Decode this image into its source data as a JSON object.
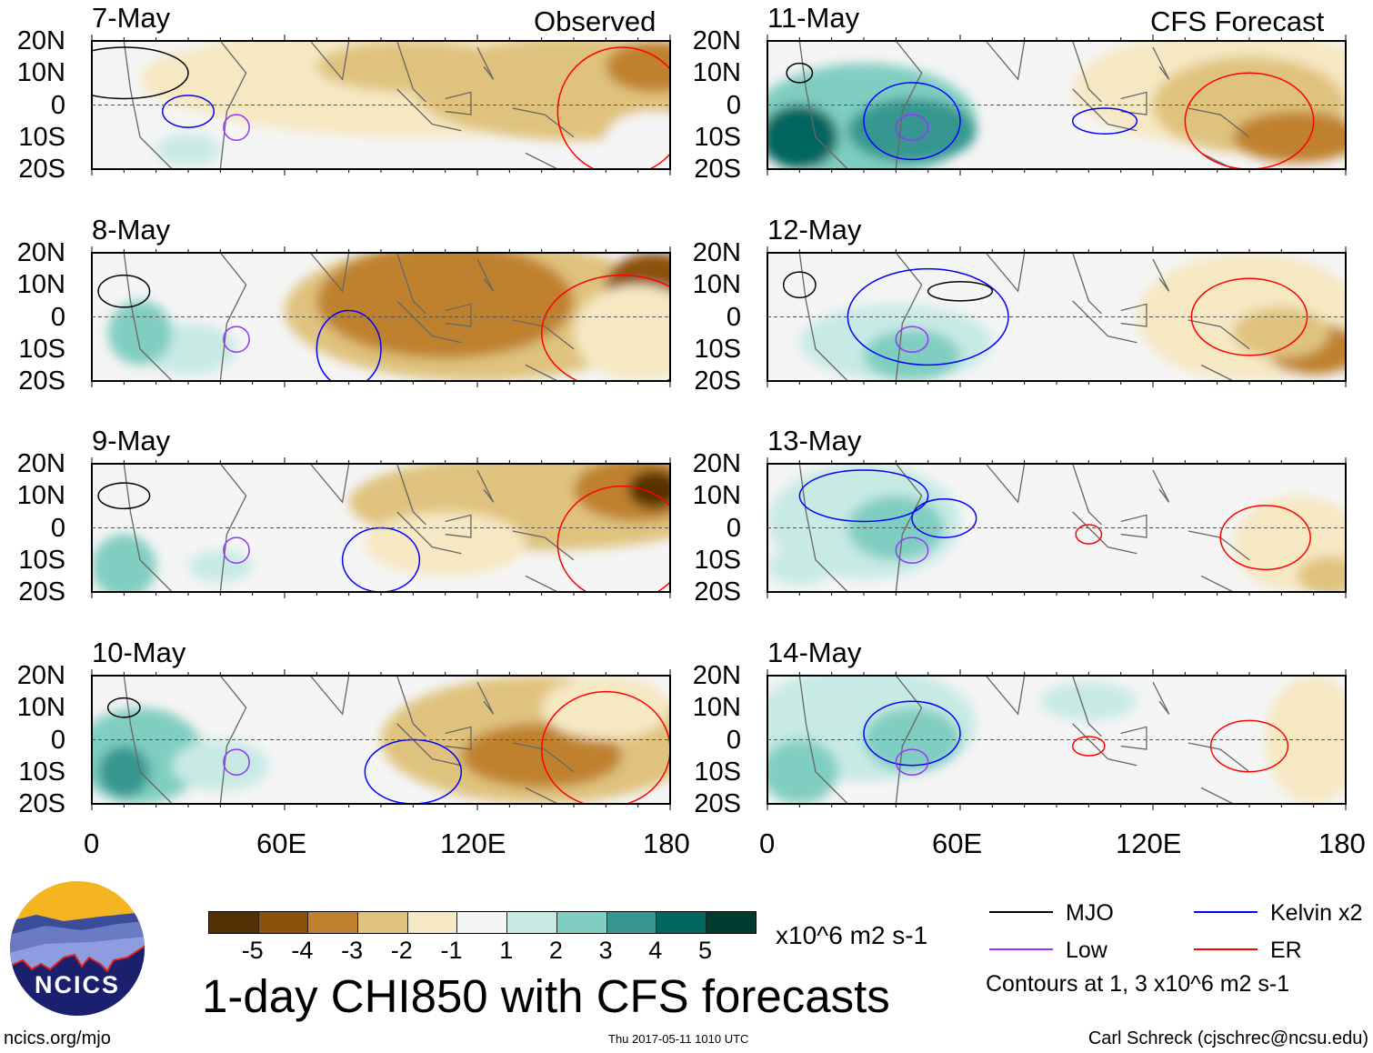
{
  "header": {
    "left_label": "Observed",
    "right_label": "CFS Forecast"
  },
  "panels": [
    {
      "date": "7-May",
      "col": 0,
      "row": 0
    },
    {
      "date": "8-May",
      "col": 0,
      "row": 1
    },
    {
      "date": "9-May",
      "col": 0,
      "row": 2
    },
    {
      "date": "10-May",
      "col": 0,
      "row": 3
    },
    {
      "date": "11-May",
      "col": 1,
      "row": 0
    },
    {
      "date": "12-May",
      "col": 1,
      "row": 1
    },
    {
      "date": "13-May",
      "col": 1,
      "row": 2
    },
    {
      "date": "14-May",
      "col": 1,
      "row": 3
    }
  ],
  "chart_data": {
    "type": "heatmap",
    "title": "1-day CHI850 with CFS forecasts",
    "units": "x10^6 m2 s-1",
    "y_ticks": [
      "20N",
      "10N",
      "0",
      "10S",
      "20S"
    ],
    "x_ticks": [
      "0",
      "60E",
      "120E",
      "180"
    ],
    "xlim": [
      0,
      180
    ],
    "ylim": [
      -20,
      20
    ],
    "colorbar": {
      "levels": [
        "-5",
        "-4",
        "-3",
        "-2",
        "-1",
        "1",
        "2",
        "3",
        "4",
        "5"
      ],
      "colors": [
        "#543005",
        "#8c510a",
        "#bf812d",
        "#dfc27d",
        "#f6e8c3",
        "#f5f5f5",
        "#c7eae5",
        "#80cdc1",
        "#35978f",
        "#01665e",
        "#003c30"
      ]
    },
    "legend": [
      {
        "name": "MJO",
        "color": "#000000"
      },
      {
        "name": "Kelvin x2",
        "color": "#0000ff"
      },
      {
        "name": "Low",
        "color": "#9933ff"
      },
      {
        "name": "ER",
        "color": "#ff0000"
      }
    ],
    "contour_note": "Contours at 1, 3 x10^6 m2 s-1"
  },
  "footer": {
    "logo_text": "NCICS",
    "url": "ncics.org/mjo",
    "timestamp": "Thu 2017-05-11 1010 UTC",
    "author": "Carl Schreck (cjschrec@ncsu.edu)"
  }
}
